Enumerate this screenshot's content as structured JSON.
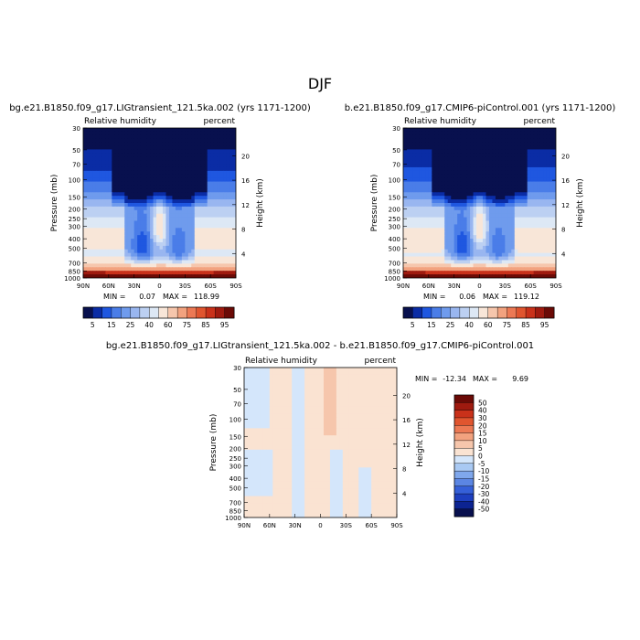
{
  "figure": {
    "season": "DJF"
  },
  "chart_data": [
    {
      "type": "heatmap",
      "title": "bg.e21.B1850.f09_g17.LIGtransient_121.5ka.002 (yrs 1171-1200)",
      "variable_label": "Relative humidity",
      "units_label": "percent",
      "ylabel": "Pressure (mb)",
      "ylabel_right": "Height (km)",
      "x_ticks": [
        "90N",
        "60N",
        "30N",
        "0",
        "30S",
        "60S",
        "90S"
      ],
      "y_ticks": [
        "30",
        "50",
        "70",
        "100",
        "150",
        "200",
        "250",
        "300",
        "400",
        "500",
        "700",
        "850",
        "1000"
      ],
      "height_ticks": [
        "20",
        "16",
        "12",
        "8",
        "4"
      ],
      "min_label": "MIN =",
      "min_value": "0.07",
      "max_label": "MAX =",
      "max_value": "118.99",
      "colorbar_labels": [
        "5",
        "15",
        "25",
        "40",
        "60",
        "75",
        "85",
        "95"
      ]
    },
    {
      "type": "heatmap",
      "title": "b.e21.B1850.f09_g17.CMIP6-piControl.001 (yrs 1171-1200)",
      "variable_label": "Relative humidity",
      "units_label": "percent",
      "ylabel": "Pressure (mb)",
      "ylabel_right": "Height (km)",
      "x_ticks": [
        "90N",
        "60N",
        "30N",
        "0",
        "30S",
        "60S",
        "90S"
      ],
      "y_ticks": [
        "30",
        "50",
        "70",
        "100",
        "150",
        "200",
        "250",
        "300",
        "400",
        "500",
        "700",
        "850",
        "1000"
      ],
      "height_ticks": [
        "20",
        "16",
        "12",
        "8",
        "4"
      ],
      "min_label": "MIN =",
      "min_value": "0.06",
      "max_label": "MAX =",
      "max_value": "119.12",
      "colorbar_labels": [
        "5",
        "15",
        "25",
        "40",
        "60",
        "75",
        "85",
        "95"
      ]
    },
    {
      "type": "heatmap",
      "title": "bg.e21.B1850.f09_g17.LIGtransient_121.5ka.002 - b.e21.B1850.f09_g17.CMIP6-piControl.001",
      "variable_label": "Relative humidity",
      "units_label": "percent",
      "ylabel": "Pressure (mb)",
      "ylabel_right": "Height (km)",
      "x_ticks": [
        "90N",
        "60N",
        "30N",
        "0",
        "30S",
        "60S",
        "90S"
      ],
      "y_ticks": [
        "30",
        "50",
        "70",
        "100",
        "150",
        "200",
        "250",
        "300",
        "400",
        "500",
        "700",
        "850",
        "1000"
      ],
      "height_ticks": [
        "20",
        "16",
        "12",
        "8",
        "4"
      ],
      "min_label": "MIN =",
      "min_value": "-12.34",
      "max_label": "MAX =",
      "max_value": "9.69",
      "colorbar_labels": [
        "50",
        "40",
        "30",
        "20",
        "15",
        "10",
        "5",
        "0",
        "-5",
        "-10",
        "-15",
        "-20",
        "-30",
        "-40",
        "-50"
      ]
    }
  ],
  "palettes": {
    "absolute": [
      "#08104e",
      "#0a2ca5",
      "#1f57e0",
      "#4a7de8",
      "#6f9bed",
      "#99b6f0",
      "#bcd0f2",
      "#dde8f5",
      "#f8e6d8",
      "#f6c6ac",
      "#f2a27f",
      "#ec7954",
      "#e0552f",
      "#c9311a",
      "#9f1a0f",
      "#6b0a06"
    ],
    "difference": [
      "#6b0a06",
      "#9f1a0f",
      "#c9311a",
      "#e0552f",
      "#ec7954",
      "#f2a27f",
      "#f6c6ac",
      "#fae3d2",
      "#d4e6fb",
      "#a9c9f3",
      "#7fa7ec",
      "#5b86e3",
      "#3560d8",
      "#1d3fbf",
      "#0c2391",
      "#08104e"
    ]
  }
}
